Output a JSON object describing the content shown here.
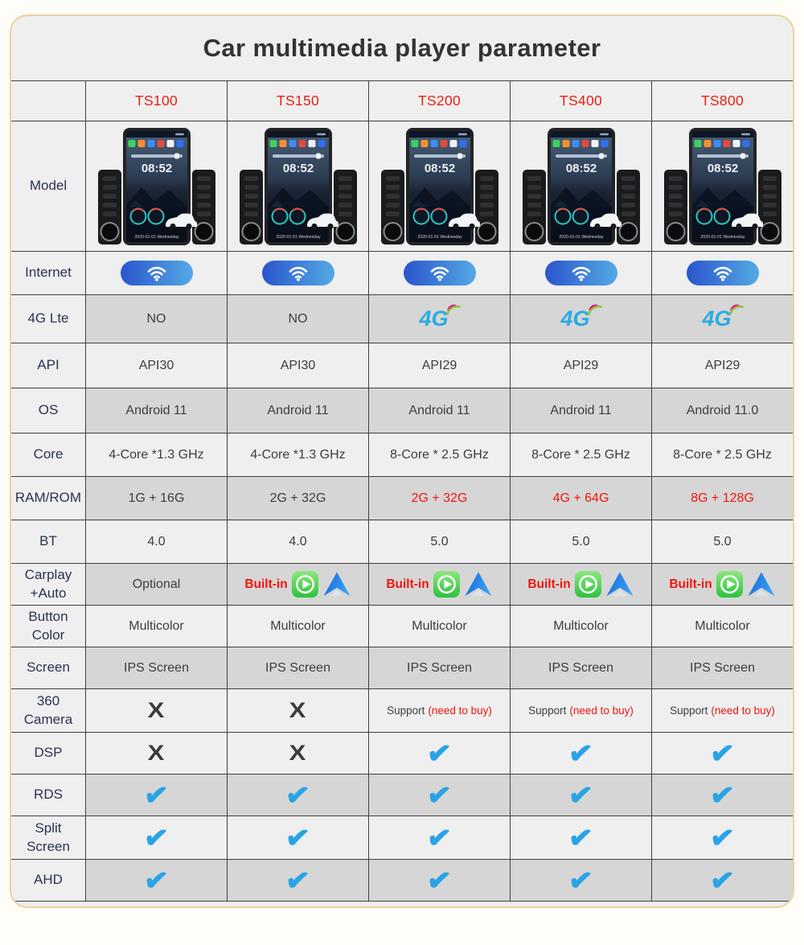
{
  "page_title": "Car multimedia player parameter",
  "columns": [
    "TS100",
    "TS150",
    "TS200",
    "TS400",
    "TS800"
  ],
  "device": {
    "time": "08:52",
    "date": "2020-01-01  Wednesday"
  },
  "icons": {
    "check_glyph": "✔",
    "cross_glyph": "X",
    "fourg_label": "4G",
    "wifi": "wifi-icon",
    "carplay": "carplay-icon",
    "android_auto": "android-auto-icon"
  },
  "colors": {
    "model_red": "#ee1d12",
    "highlight_red": "#f3140b",
    "check_blue": "#2aa3e6",
    "cross_dark": "#3b3b3b",
    "fourg_blue": "#29abe2",
    "fourg_pink": "#ec008c",
    "fourg_green": "#8cc63e",
    "wifi_blue_start": "#2a55cd",
    "wifi_blue_end": "#54a9e4",
    "row_dark": "#d6d6d6",
    "row_light": "#efefef",
    "card_border_tan": "#ecd29e"
  },
  "rows": [
    {
      "label": "Model",
      "shade": "light",
      "cells": [
        {
          "t": "device"
        },
        {
          "t": "device"
        },
        {
          "t": "device"
        },
        {
          "t": "device"
        },
        {
          "t": "device"
        }
      ]
    },
    {
      "label": "Internet",
      "shade": "light",
      "cells": [
        {
          "t": "wifi"
        },
        {
          "t": "wifi"
        },
        {
          "t": "wifi"
        },
        {
          "t": "wifi"
        },
        {
          "t": "wifi"
        }
      ]
    },
    {
      "label": "4G Lte",
      "shade": "dark",
      "cells": [
        {
          "t": "text",
          "v": "NO"
        },
        {
          "t": "text",
          "v": "NO"
        },
        {
          "t": "fourg"
        },
        {
          "t": "fourg"
        },
        {
          "t": "fourg"
        }
      ]
    },
    {
      "label": "API",
      "shade": "light",
      "cells": [
        {
          "t": "text",
          "v": "API30"
        },
        {
          "t": "text",
          "v": "API30"
        },
        {
          "t": "text",
          "v": "API29"
        },
        {
          "t": "text",
          "v": "API29"
        },
        {
          "t": "text",
          "v": "API29"
        }
      ]
    },
    {
      "label": "OS",
      "shade": "dark",
      "cells": [
        {
          "t": "text",
          "v": "Android 11"
        },
        {
          "t": "text",
          "v": "Android 11"
        },
        {
          "t": "text",
          "v": "Android 11"
        },
        {
          "t": "text",
          "v": "Android 11"
        },
        {
          "t": "text",
          "v": "Android 11.0"
        }
      ]
    },
    {
      "label": "Core",
      "shade": "light",
      "cells": [
        {
          "t": "text",
          "v": "4-Core *1.3 GHz"
        },
        {
          "t": "text",
          "v": "4-Core *1.3 GHz"
        },
        {
          "t": "text",
          "v": "8-Core *  2.5 GHz"
        },
        {
          "t": "text",
          "v": "8-Core *  2.5 GHz"
        },
        {
          "t": "text",
          "v": "8-Core *  2.5 GHz"
        }
      ]
    },
    {
      "label": "RAM/ROM",
      "shade": "dark",
      "cells": [
        {
          "t": "text",
          "v": "1G + 16G"
        },
        {
          "t": "text",
          "v": "2G + 32G"
        },
        {
          "t": "text",
          "v": "2G + 32G",
          "red": true
        },
        {
          "t": "text",
          "v": "4G + 64G",
          "red": true
        },
        {
          "t": "text",
          "v": "8G + 128G",
          "red": true
        }
      ]
    },
    {
      "label": "BT",
      "shade": "light",
      "cells": [
        {
          "t": "text",
          "v": "4.0"
        },
        {
          "t": "text",
          "v": "4.0"
        },
        {
          "t": "text",
          "v": "5.0"
        },
        {
          "t": "text",
          "v": "5.0"
        },
        {
          "t": "text",
          "v": "5.0"
        }
      ]
    },
    {
      "label": "Carplay +Auto",
      "shade": "dark",
      "cells": [
        {
          "t": "text",
          "v": "Optional"
        },
        {
          "t": "carplay",
          "v": "Built-in"
        },
        {
          "t": "carplay",
          "v": "Built-in"
        },
        {
          "t": "carplay",
          "v": "Built-in"
        },
        {
          "t": "carplay",
          "v": "Built-in"
        }
      ]
    },
    {
      "label": "Button Color",
      "shade": "light",
      "cells": [
        {
          "t": "text",
          "v": "Multicolor"
        },
        {
          "t": "text",
          "v": "Multicolor"
        },
        {
          "t": "text",
          "v": "Multicolor"
        },
        {
          "t": "text",
          "v": "Multicolor"
        },
        {
          "t": "text",
          "v": "Multicolor"
        }
      ]
    },
    {
      "label": "Screen",
      "shade": "dark",
      "cells": [
        {
          "t": "text",
          "v": "IPS Screen"
        },
        {
          "t": "text",
          "v": "IPS Screen"
        },
        {
          "t": "text",
          "v": "IPS Screen"
        },
        {
          "t": "text",
          "v": "IPS Screen"
        },
        {
          "t": "text",
          "v": "IPS Screen"
        }
      ]
    },
    {
      "label": "360 Camera",
      "shade": "light",
      "cells": [
        {
          "t": "cross"
        },
        {
          "t": "cross"
        },
        {
          "t": "support",
          "v": "Support",
          "extra": "(need to buy)"
        },
        {
          "t": "support",
          "v": "Support",
          "extra": "(need to buy)"
        },
        {
          "t": "support",
          "v": "Support",
          "extra": "(need to buy)"
        }
      ]
    },
    {
      "label": "DSP",
      "shade": "light",
      "cells": [
        {
          "t": "cross"
        },
        {
          "t": "cross"
        },
        {
          "t": "check"
        },
        {
          "t": "check"
        },
        {
          "t": "check"
        }
      ]
    },
    {
      "label": "RDS",
      "shade": "dark",
      "cells": [
        {
          "t": "check"
        },
        {
          "t": "check"
        },
        {
          "t": "check"
        },
        {
          "t": "check"
        },
        {
          "t": "check"
        }
      ]
    },
    {
      "label": "Split Screen",
      "shade": "light",
      "cells": [
        {
          "t": "check"
        },
        {
          "t": "check"
        },
        {
          "t": "check"
        },
        {
          "t": "check"
        },
        {
          "t": "check"
        }
      ]
    },
    {
      "label": "AHD",
      "shade": "dark",
      "cells": [
        {
          "t": "check"
        },
        {
          "t": "check"
        },
        {
          "t": "check"
        },
        {
          "t": "check"
        },
        {
          "t": "check"
        }
      ]
    }
  ]
}
